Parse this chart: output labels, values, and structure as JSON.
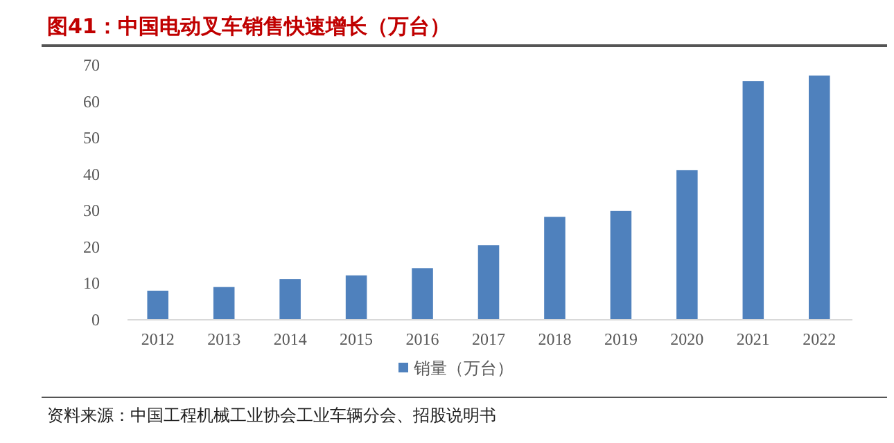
{
  "chart_data": {
    "type": "bar",
    "title": "图41：中国电动叉车销售快速增长（万台）",
    "categories": [
      "2012",
      "2013",
      "2014",
      "2015",
      "2016",
      "2017",
      "2018",
      "2019",
      "2020",
      "2021",
      "2022"
    ],
    "series": [
      {
        "name": "销量（万台）",
        "color": "#4f81bd",
        "values": [
          8.0,
          9.0,
          11.2,
          12.2,
          14.2,
          20.5,
          28.3,
          29.9,
          41.1,
          65.6,
          67.1
        ]
      }
    ],
    "ylim": [
      0,
      70
    ],
    "yticks": [
      0,
      10,
      20,
      30,
      40,
      50,
      60,
      70
    ],
    "legend": "bottom",
    "annotations": [
      "资料来源：中国工程机械工业协会工业车辆分会、招股说明书"
    ]
  }
}
